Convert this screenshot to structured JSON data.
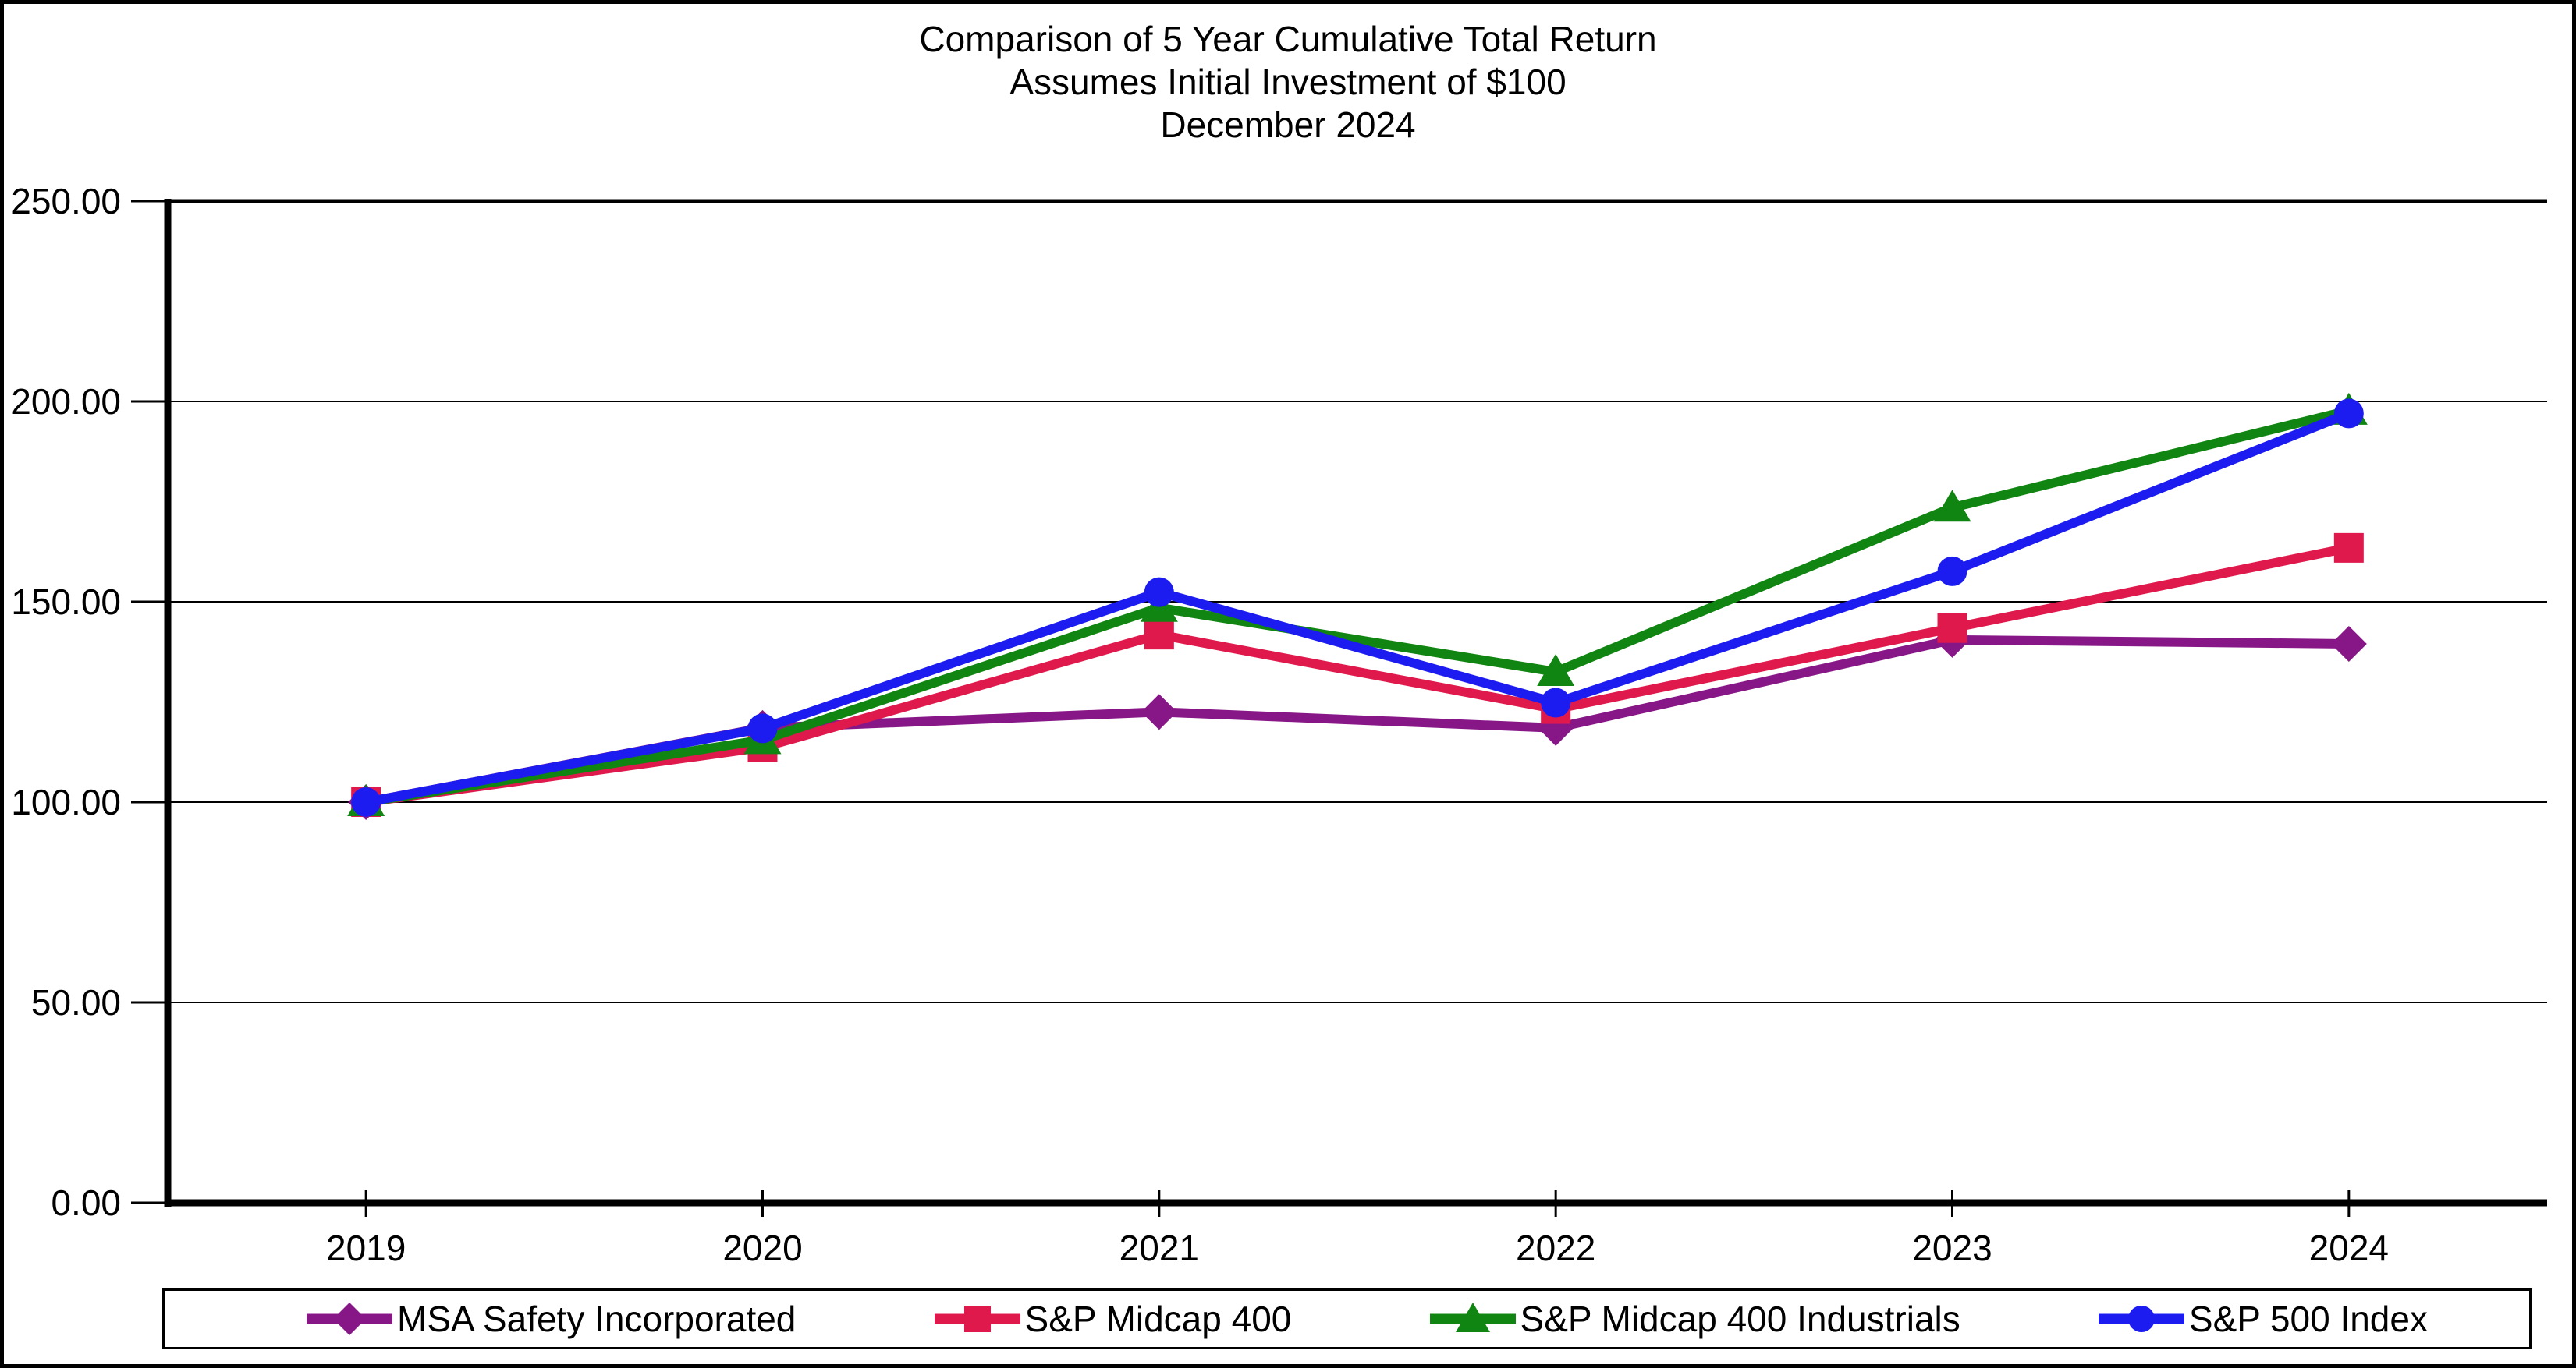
{
  "chart_data": {
    "type": "line",
    "title": "Comparison of 5 Year Cumulative Total Return",
    "subtitle": "Assumes Initial Investment of $100",
    "date_label": "December 2024",
    "categories": [
      "2019",
      "2020",
      "2021",
      "2022",
      "2023",
      "2024"
    ],
    "series": [
      {
        "name": "MSA Safety Incorporated",
        "marker": "diamond",
        "color": "#871787",
        "values": [
          100.0,
          118.5,
          122.5,
          118.5,
          140.5,
          139.5
        ]
      },
      {
        "name": "S&P Midcap 400",
        "marker": "square",
        "color": "#E0194D",
        "values": [
          100.0,
          113.66,
          141.8,
          123.24,
          143.44,
          163.45
        ]
      },
      {
        "name": "S&P Midcap 400 Industrials",
        "marker": "triangle",
        "color": "#118511",
        "values": [
          100.0,
          115.5,
          148.5,
          132.5,
          173.5,
          197.7
        ]
      },
      {
        "name": "S&P 500 Index",
        "marker": "circle",
        "color": "#1C1CF0",
        "values": [
          100.0,
          118.4,
          152.4,
          124.8,
          157.6,
          197.0
        ]
      }
    ],
    "ylim": [
      0,
      250
    ],
    "ytick_step": 50,
    "ytick_labels": [
      "0.00",
      "50.00",
      "100.00",
      "150.00",
      "200.00",
      "250.00"
    ],
    "grid": true,
    "legend_position": "bottom",
    "axis_color": "#000000",
    "background_color": "#ffffff"
  }
}
